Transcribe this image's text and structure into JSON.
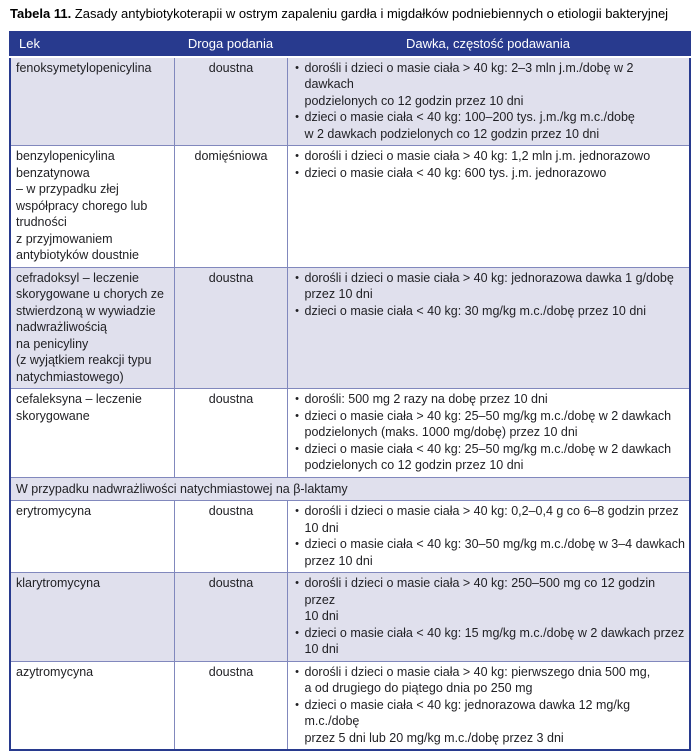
{
  "title": {
    "prefix": "Tabela 11.",
    "text": " Zasady antybiotykoterapii w ostrym zapaleniu gardła i migdałków podniebiennych o etiologii bakteryjnej"
  },
  "colors": {
    "header_bg": "#283a8e",
    "header_text": "#ffffff",
    "row_shaded_bg": "#e0e0ed",
    "row_plain_bg": "#ffffff",
    "border_inner": "#8188bd",
    "border_outer": "#283a8e",
    "body_text": "#1f1f23"
  },
  "table": {
    "bullet_glyph": "•",
    "headers": [
      {
        "label": "Lek"
      },
      {
        "label": "Droga podania"
      },
      {
        "label": "Dawka, częstość podawania"
      }
    ],
    "rows": [
      {
        "type": "drug",
        "shaded": true,
        "drug": "fenoksymetylopenicylina",
        "route": "doustna",
        "doses": [
          "dorośli i dzieci o masie ciała > 40 kg: 2–3 mln j.m./dobę w 2 dawkach\npodzielonych co 12 godzin przez 10 dni",
          "dzieci o masie ciała < 40 kg: 100–200 tys. j.m./kg m.c./dobę\nw 2 dawkach podzielonych co 12 godzin przez 10 dni"
        ]
      },
      {
        "type": "drug",
        "shaded": false,
        "drug": "benzylopenicylina\nbenzatynowa\n– w przypadku złej\nwspółpracy chorego lub\ntrudności\nz przyjmowaniem\nantybiotyków doustnie",
        "route": "domięśniowa",
        "doses": [
          "dorośli i dzieci o masie ciała > 40 kg: 1,2 mln j.m. jednorazowo",
          "dzieci o masie ciała < 40 kg: 600 tys. j.m. jednorazowo"
        ]
      },
      {
        "type": "drug",
        "shaded": true,
        "drug": "cefradoksyl – leczenie\nskorygowane u chorych ze\nstwierdzoną w wywiadzie\nnadwrażliwością\nna penicyliny\n(z wyjątkiem reakcji typu\nnatychmiastowego)",
        "route": "doustna",
        "doses": [
          "dorośli i dzieci o masie ciała > 40 kg: jednorazowa dawka 1 g/dobę\nprzez 10 dni",
          "dzieci o masie ciała < 40 kg: 30 mg/kg m.c./dobę przez 10 dni"
        ]
      },
      {
        "type": "drug",
        "shaded": false,
        "drug": "cefaleksyna – leczenie\nskorygowane",
        "route": "doustna",
        "doses": [
          "dorośli: 500 mg 2 razy na dobę przez 10 dni",
          "dzieci o masie ciała > 40 kg: 25–50 mg/kg m.c./dobę w 2 dawkach\npodzielonych (maks. 1000 mg/dobę) przez 10 dni",
          "dzieci o masie ciała < 40 kg: 25–50 mg/kg m.c./dobę w 2 dawkach\npodzielonych co 12 godzin przez 10 dni"
        ]
      },
      {
        "type": "section",
        "shaded": true,
        "label": "W przypadku nadwrażliwości natychmiastowej na β-laktamy"
      },
      {
        "type": "drug",
        "shaded": false,
        "drug": "erytromycyna",
        "route": "doustna",
        "doses": [
          "dorośli i dzieci o masie ciała > 40 kg: 0,2–0,4 g co 6–8 godzin przez\n10 dni",
          "dzieci o masie ciała < 40 kg: 30–50 mg/kg m.c./dobę w 3–4 dawkach\nprzez 10 dni"
        ]
      },
      {
        "type": "drug",
        "shaded": true,
        "drug": "klarytromycyna",
        "route": "doustna",
        "doses": [
          "dorośli i dzieci o masie ciała > 40 kg: 250–500 mg co 12 godzin przez\n10 dni",
          "dzieci o masie ciała < 40 kg: 15 mg/kg m.c./dobę w 2 dawkach przez\n10 dni"
        ]
      },
      {
        "type": "drug",
        "shaded": false,
        "drug": "azytromycyna",
        "route": "doustna",
        "doses": [
          "dorośli i dzieci o masie ciała > 40 kg: pierwszego dnia 500 mg,\na od drugiego do piątego dnia po 250 mg",
          "dzieci o masie ciała < 40 kg: jednorazowa dawka 12 mg/kg m.c./dobę\nprzez 5 dni lub 20 mg/kg m.c./dobę przez 3 dni"
        ]
      }
    ]
  }
}
